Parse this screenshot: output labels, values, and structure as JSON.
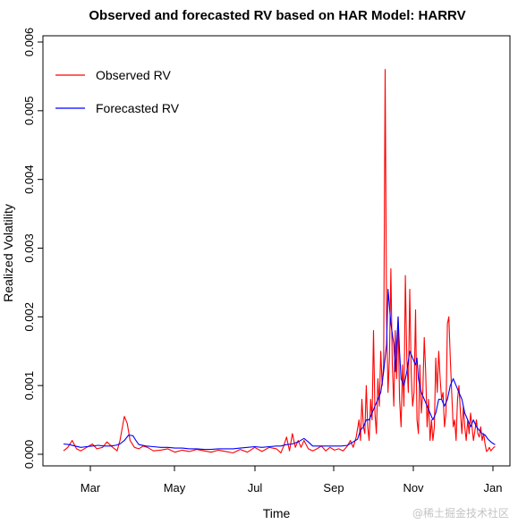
{
  "chart_data": {
    "type": "line",
    "title": "Observed and forecasted RV based on HAR Model: HARRV",
    "xlabel": "Time",
    "ylabel": "Realized Volatility",
    "x_ticks": [
      "Mar",
      "May",
      "Jul",
      "Sep",
      "Nov",
      "Jan"
    ],
    "y_ticks": [
      "0.000",
      "0.001",
      "0.002",
      "0.003",
      "0.004",
      "0.005",
      "0.006"
    ],
    "ylim": [
      0,
      0.006
    ],
    "xlim": [
      0,
      310
    ],
    "grid": false,
    "legend_position": "top-left",
    "series": [
      {
        "name": "Observed RV",
        "color": "#ff0000",
        "points": [
          [
            8,
            5e-05
          ],
          [
            11,
            0.0001
          ],
          [
            14,
            0.0002
          ],
          [
            17,
            8e-05
          ],
          [
            20,
            5e-05
          ],
          [
            24,
            0.0001
          ],
          [
            28,
            0.00015
          ],
          [
            31,
            8e-05
          ],
          [
            35,
            0.0001
          ],
          [
            38,
            0.00018
          ],
          [
            42,
            0.0001
          ],
          [
            45,
            5e-05
          ],
          [
            47,
            0.0002
          ],
          [
            50,
            0.00055
          ],
          [
            52,
            0.00045
          ],
          [
            54,
            0.0002
          ],
          [
            57,
            0.0001
          ],
          [
            60,
            8e-05
          ],
          [
            63,
            0.00012
          ],
          [
            66,
            0.0001
          ],
          [
            70,
            5e-05
          ],
          [
            75,
            6e-05
          ],
          [
            80,
            8e-05
          ],
          [
            85,
            3e-05
          ],
          [
            90,
            6e-05
          ],
          [
            95,
            4e-05
          ],
          [
            100,
            7e-05
          ],
          [
            105,
            5e-05
          ],
          [
            110,
            3e-05
          ],
          [
            115,
            6e-05
          ],
          [
            120,
            4e-05
          ],
          [
            125,
            2e-05
          ],
          [
            130,
            7e-05
          ],
          [
            135,
            3e-05
          ],
          [
            140,
            0.0001
          ],
          [
            145,
            4e-05
          ],
          [
            150,
            0.0001
          ],
          [
            155,
            8e-05
          ],
          [
            158,
            2e-05
          ],
          [
            160,
            0.00012
          ],
          [
            162,
            0.00025
          ],
          [
            164,
            5e-05
          ],
          [
            166,
            0.0003
          ],
          [
            168,
            0.0001
          ],
          [
            170,
            0.0002
          ],
          [
            172,
            0.0001
          ],
          [
            174,
            0.0002
          ],
          [
            177,
            8e-05
          ],
          [
            180,
            5e-05
          ],
          [
            183,
            8e-05
          ],
          [
            186,
            0.00012
          ],
          [
            189,
            5e-05
          ],
          [
            192,
            0.0001
          ],
          [
            195,
            6e-05
          ],
          [
            198,
            8e-05
          ],
          [
            201,
            5e-05
          ],
          [
            204,
            0.00012
          ],
          [
            206,
            0.0002
          ],
          [
            208,
            0.0001
          ],
          [
            210,
            0.00025
          ],
          [
            212,
            0.0005
          ],
          [
            213,
            0.0002
          ],
          [
            214,
            0.0008
          ],
          [
            215,
            0.0004
          ],
          [
            216,
            0.0003
          ],
          [
            217,
            0.001
          ],
          [
            218,
            0.0004
          ],
          [
            219,
            0.0002
          ],
          [
            220,
            0.0008
          ],
          [
            221,
            0.0005
          ],
          [
            222,
            0.0018
          ],
          [
            223,
            0.0006
          ],
          [
            224,
            0.0003
          ],
          [
            225,
            0.0011
          ],
          [
            226,
            0.0007
          ],
          [
            227,
            0.0015
          ],
          [
            228,
            0.001
          ],
          [
            229,
            0.0013
          ],
          [
            230,
            0.0056
          ],
          [
            231,
            0.002
          ],
          [
            232,
            0.0009
          ],
          [
            233,
            0.0014
          ],
          [
            234,
            0.0027
          ],
          [
            235,
            0.0013
          ],
          [
            236,
            0.0007
          ],
          [
            237,
            0.0018
          ],
          [
            238,
            0.0011
          ],
          [
            239,
            0.002
          ],
          [
            240,
            0.0008
          ],
          [
            241,
            0.0004
          ],
          [
            242,
            0.0013
          ],
          [
            243,
            0.0007
          ],
          [
            244,
            0.0026
          ],
          [
            245,
            0.0014
          ],
          [
            246,
            0.0009
          ],
          [
            247,
            0.0024
          ],
          [
            248,
            0.0012
          ],
          [
            249,
            0.0007
          ],
          [
            250,
            0.0009
          ],
          [
            251,
            0.0021
          ],
          [
            252,
            0.0005
          ],
          [
            253,
            0.0003
          ],
          [
            254,
            0.0013
          ],
          [
            255,
            0.0006
          ],
          [
            256,
            0.0009
          ],
          [
            257,
            0.0017
          ],
          [
            258,
            0.0012
          ],
          [
            259,
            0.0004
          ],
          [
            260,
            0.0008
          ],
          [
            261,
            0.0002
          ],
          [
            262,
            0.0005
          ],
          [
            263,
            0.0002
          ],
          [
            264,
            0.0004
          ],
          [
            265,
            0.0014
          ],
          [
            266,
            0.0009
          ],
          [
            267,
            0.0015
          ],
          [
            268,
            0.0011
          ],
          [
            269,
            0.0008
          ],
          [
            270,
            0.0009
          ],
          [
            271,
            0.0004
          ],
          [
            272,
            0.0006
          ],
          [
            273,
            0.0019
          ],
          [
            274,
            0.002
          ],
          [
            275,
            0.0014
          ],
          [
            276,
            0.0009
          ],
          [
            277,
            0.0004
          ],
          [
            278,
            0.0005
          ],
          [
            279,
            0.0002
          ],
          [
            280,
            0.0008
          ],
          [
            281,
            0.001
          ],
          [
            282,
            0.0006
          ],
          [
            283,
            0.0003
          ],
          [
            284,
            0.0007
          ],
          [
            285,
            0.0004
          ],
          [
            286,
            0.0002
          ],
          [
            287,
            0.0005
          ],
          [
            288,
            0.0003
          ],
          [
            289,
            0.0006
          ],
          [
            290,
            0.0004
          ],
          [
            291,
            0.0002
          ],
          [
            292,
            0.00035
          ],
          [
            293,
            0.0005
          ],
          [
            294,
            0.0003
          ],
          [
            295,
            0.00025
          ],
          [
            296,
            0.0004
          ],
          [
            297,
            0.0002
          ],
          [
            298,
            0.0003
          ],
          [
            299,
            0.00015
          ],
          [
            300,
            4e-05
          ],
          [
            301,
            6e-05
          ],
          [
            302,
            0.0001
          ],
          [
            303,
            5e-05
          ],
          [
            305,
            0.0001
          ],
          [
            306,
            0.00011
          ]
        ]
      },
      {
        "name": "Forecasted RV",
        "color": "#0000ff",
        "points": [
          [
            8,
            0.00015
          ],
          [
            12,
            0.00014
          ],
          [
            16,
            0.00012
          ],
          [
            20,
            0.0001
          ],
          [
            24,
            0.00011
          ],
          [
            28,
            0.00012
          ],
          [
            32,
            0.00013
          ],
          [
            36,
            0.00012
          ],
          [
            40,
            0.00012
          ],
          [
            44,
            0.00013
          ],
          [
            47,
            0.00015
          ],
          [
            50,
            0.0002
          ],
          [
            53,
            0.00028
          ],
          [
            56,
            0.00027
          ],
          [
            58,
            0.0002
          ],
          [
            60,
            0.00014
          ],
          [
            65,
            0.00012
          ],
          [
            70,
            0.00011
          ],
          [
            75,
            0.0001
          ],
          [
            80,
            0.0001
          ],
          [
            85,
            9e-05
          ],
          [
            90,
            9e-05
          ],
          [
            95,
            8e-05
          ],
          [
            100,
            8e-05
          ],
          [
            105,
            7e-05
          ],
          [
            110,
            7e-05
          ],
          [
            115,
            8e-05
          ],
          [
            120,
            8e-05
          ],
          [
            125,
            8e-05
          ],
          [
            130,
            9e-05
          ],
          [
            135,
            0.0001
          ],
          [
            140,
            0.00011
          ],
          [
            145,
            0.0001
          ],
          [
            150,
            0.00011
          ],
          [
            155,
            0.00012
          ],
          [
            158,
            0.00012
          ],
          [
            162,
            0.00014
          ],
          [
            166,
            0.00015
          ],
          [
            170,
            0.00018
          ],
          [
            174,
            0.00023
          ],
          [
            177,
            0.00018
          ],
          [
            180,
            0.00012
          ],
          [
            184,
            0.00012
          ],
          [
            188,
            0.00012
          ],
          [
            192,
            0.00012
          ],
          [
            196,
            0.00012
          ],
          [
            200,
            0.00012
          ],
          [
            204,
            0.00013
          ],
          [
            208,
            0.00018
          ],
          [
            211,
            0.00022
          ],
          [
            213,
            0.00035
          ],
          [
            215,
            0.0004
          ],
          [
            217,
            0.0005
          ],
          [
            219,
            0.0005
          ],
          [
            221,
            0.0006
          ],
          [
            223,
            0.0007
          ],
          [
            225,
            0.0008
          ],
          [
            227,
            0.0009
          ],
          [
            229,
            0.0012
          ],
          [
            231,
            0.0016
          ],
          [
            232,
            0.0024
          ],
          [
            234,
            0.0019
          ],
          [
            236,
            0.0016
          ],
          [
            237,
            0.0012
          ],
          [
            238,
            0.0016
          ],
          [
            239,
            0.002
          ],
          [
            240,
            0.0015
          ],
          [
            241,
            0.0011
          ],
          [
            243,
            0.001
          ],
          [
            245,
            0.0012
          ],
          [
            247,
            0.0015
          ],
          [
            249,
            0.0014
          ],
          [
            251,
            0.0013
          ],
          [
            252,
            0.0014
          ],
          [
            253,
            0.0011
          ],
          [
            255,
            0.0009
          ],
          [
            257,
            0.0008
          ],
          [
            259,
            0.0007
          ],
          [
            261,
            0.0006
          ],
          [
            263,
            0.0005
          ],
          [
            265,
            0.0006
          ],
          [
            267,
            0.0008
          ],
          [
            269,
            0.0008
          ],
          [
            271,
            0.0007
          ],
          [
            273,
            0.0008
          ],
          [
            275,
            0.001
          ],
          [
            277,
            0.0011
          ],
          [
            279,
            0.001
          ],
          [
            281,
            0.0009
          ],
          [
            283,
            0.0008
          ],
          [
            285,
            0.0006
          ],
          [
            287,
            0.0005
          ],
          [
            289,
            0.0004
          ],
          [
            291,
            0.0005
          ],
          [
            293,
            0.0004
          ],
          [
            295,
            0.00035
          ],
          [
            297,
            0.0003
          ],
          [
            299,
            0.00028
          ],
          [
            301,
            0.00022
          ],
          [
            303,
            0.00018
          ],
          [
            305,
            0.00015
          ],
          [
            306,
            0.00014
          ]
        ]
      }
    ]
  },
  "watermark": "@稀土掘金技术社区"
}
